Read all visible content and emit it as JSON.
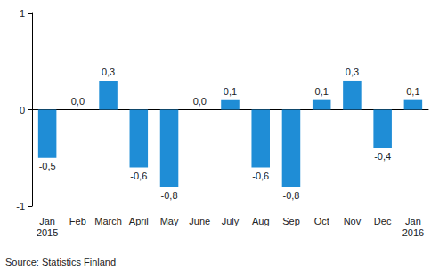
{
  "chart_data": {
    "type": "bar",
    "categories": [
      "Jan\n2015",
      "Feb",
      "March",
      "April",
      "May",
      "June",
      "July",
      "Aug",
      "Sep",
      "Oct",
      "Nov",
      "Dec",
      "Jan\n2016"
    ],
    "values": [
      -0.5,
      0.0,
      0.3,
      -0.6,
      -0.8,
      0.0,
      0.1,
      -0.6,
      -0.8,
      0.1,
      0.3,
      -0.4,
      0.1
    ],
    "value_labels": [
      "-0,5",
      "0,0",
      "0,3",
      "-0,6",
      "-0,8",
      "0,0",
      "0,1",
      "-0,6",
      "-0,8",
      "0,1",
      "0,3",
      "-0,4",
      "0,1"
    ],
    "color": "#1f8dd6",
    "ylim": [
      -1,
      1
    ],
    "yticks": [
      -1,
      0,
      1
    ],
    "grid": false,
    "data_labels": true,
    "annotations": [
      "Source: Statistics Finland"
    ]
  }
}
